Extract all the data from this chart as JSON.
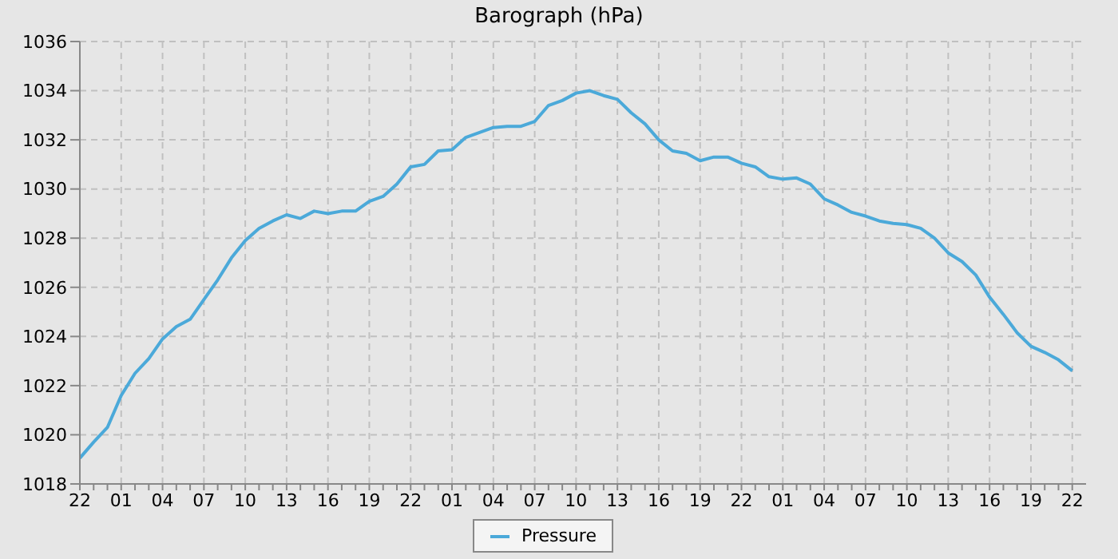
{
  "chart_data": {
    "type": "line",
    "title": "Barograph (hPa)",
    "categories": [
      "22",
      null,
      null,
      "01",
      null,
      null,
      "04",
      null,
      null,
      "07",
      null,
      null,
      "10",
      null,
      null,
      "13",
      null,
      null,
      "16",
      null,
      null,
      "19",
      null,
      null,
      "22",
      null,
      null,
      "01",
      null,
      null,
      "04",
      null,
      null,
      "07",
      null,
      null,
      "10",
      null,
      null,
      "13",
      null,
      null,
      "16",
      null,
      null,
      "19",
      null,
      null,
      "22",
      null,
      null,
      "01",
      null,
      null,
      "04",
      null,
      null,
      "07",
      null,
      null,
      "10",
      null,
      null,
      "13",
      null,
      null,
      "16",
      null,
      null,
      "19",
      null,
      null,
      "22"
    ],
    "series": [
      {
        "name": "Pressure",
        "color": "#4ba9d9",
        "values": [
          1019.05,
          1019.7,
          1020.3,
          1021.6,
          1022.5,
          1023.1,
          1023.9,
          1024.4,
          1024.7,
          1025.5,
          1026.3,
          1027.2,
          1027.9,
          1028.4,
          1028.7,
          1028.95,
          1028.8,
          1029.1,
          1029.0,
          1029.1,
          1029.1,
          1029.5,
          1029.7,
          1030.2,
          1030.9,
          1031.0,
          1031.55,
          1031.6,
          1032.1,
          1032.3,
          1032.5,
          1032.55,
          1032.55,
          1032.75,
          1033.4,
          1033.6,
          1033.9,
          1034.0,
          1033.8,
          1033.65,
          1033.1,
          1032.65,
          1032.0,
          1031.55,
          1031.45,
          1031.15,
          1031.3,
          1031.3,
          1031.05,
          1030.9,
          1030.5,
          1030.4,
          1030.45,
          1030.2,
          1029.6,
          1029.35,
          1029.05,
          1028.9,
          1028.7,
          1028.6,
          1028.55,
          1028.4,
          1028.0,
          1027.4,
          1027.05,
          1026.5,
          1025.6,
          1024.9,
          1024.15,
          1023.6,
          1023.35,
          1023.05,
          1022.6
        ]
      }
    ],
    "ylim": [
      1018,
      1036
    ],
    "yticks": [
      1018,
      1020,
      1022,
      1024,
      1026,
      1028,
      1030,
      1032,
      1034,
      1036
    ],
    "grid": true,
    "legend": "bottom",
    "marker": "none",
    "line_style": "solid"
  }
}
